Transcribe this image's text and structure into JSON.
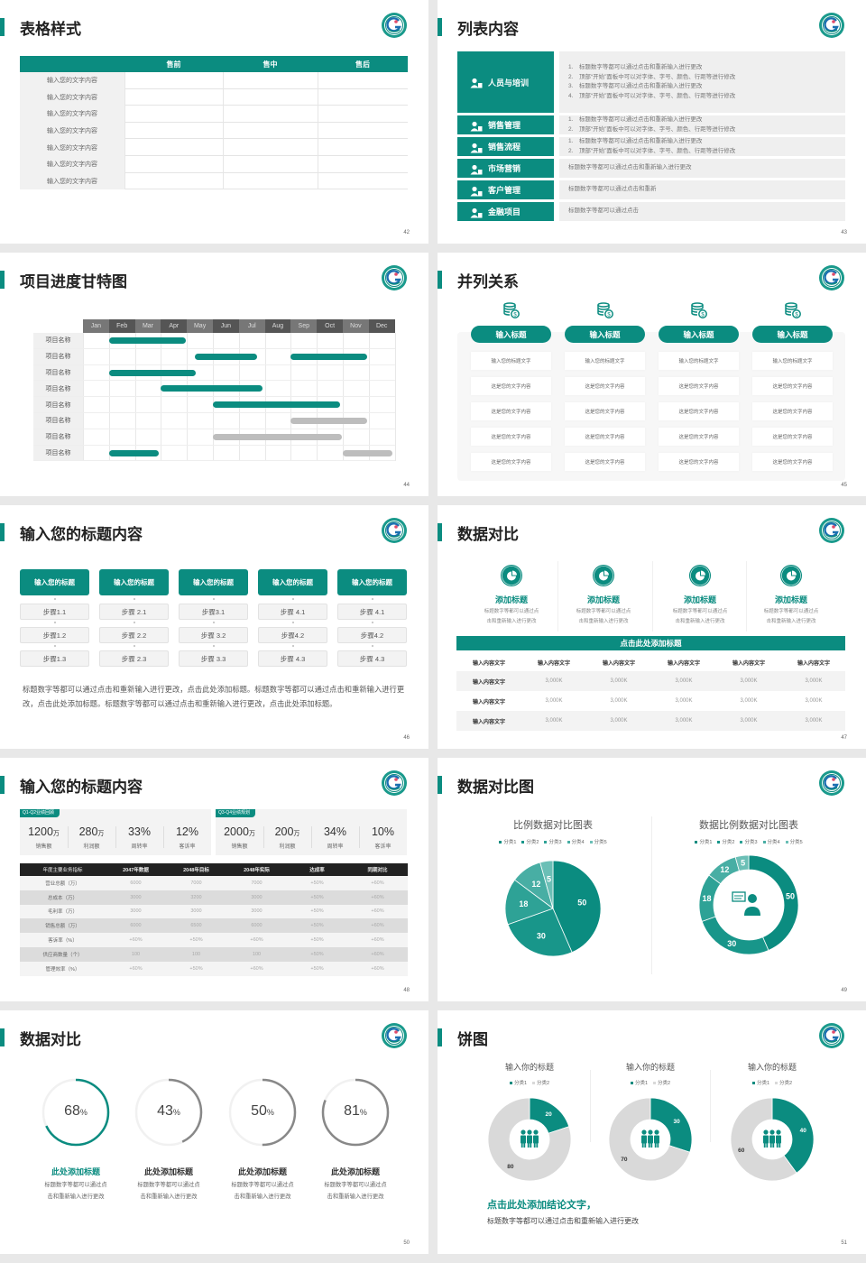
{
  "accent": "#0b8c80",
  "s42": {
    "title": "表格样式",
    "page": "42",
    "headers": [
      "",
      "售前",
      "售中",
      "售后"
    ],
    "rows": [
      "输入您的文字内容",
      "输入您的文字内容",
      "输入您的文字内容",
      "输入您的文字内容",
      "输入您的文字内容",
      "输入您的文字内容",
      "输入您的文字内容"
    ]
  },
  "s43": {
    "title": "列表内容",
    "page": "43",
    "items": [
      {
        "label": "人员与培训",
        "icon": "training-icon",
        "lines": [
          "1.　标题数字等都可以通过点击和重新输入进行更改",
          "2.　顶部“开始”面板中可以对字体、字号、颜色、行距等进行修改",
          "3.　标题数字等都可以通过点击和重新输入进行更改",
          "4.　顶部“开始”面板中可以对字体、字号、颜色、行距等进行修改"
        ]
      },
      {
        "label": "销售管理",
        "icon": "user-gear-icon",
        "lines": [
          "1.　标题数字等都可以通过点击和重新输入进行更改",
          "2.　顶部“开始”面板中可以对字体、字号、颜色、行距等进行修改"
        ]
      },
      {
        "label": "销售流程",
        "icon": "cycle-icon",
        "lines": [
          "1.　标题数字等都可以通过点击和重新输入进行更改",
          "2.　顶部“开始”面板中可以对字体、字号、颜色、行距等进行修改"
        ]
      },
      {
        "label": "市场营销",
        "icon": "bar-chart-icon",
        "lines": [
          "标题数字等都可以通过点击和重新输入进行更改"
        ]
      },
      {
        "label": "客户管理",
        "icon": "users-icon",
        "lines": [
          "标题数字等都可以通过点击和重新"
        ]
      },
      {
        "label": "金融项目",
        "icon": "money-hand-icon",
        "lines": [
          "标题数字等都可以通过点击"
        ]
      }
    ]
  },
  "s44": {
    "title": "项目进度甘特图",
    "page": "44",
    "months": [
      "Jan",
      "Feb",
      "Mar",
      "Apr",
      "May",
      "Jun",
      "Jul",
      "Aug",
      "Sep",
      "Oct",
      "Nov",
      "Dec"
    ],
    "rows": [
      {
        "label": "项目名称",
        "bars": [
          {
            "start": 1,
            "end": 3.95,
            "status": "active"
          }
        ]
      },
      {
        "label": "项目名称",
        "bars": [
          {
            "start": 4.3,
            "end": 6.7,
            "status": "active"
          },
          {
            "start": 8,
            "end": 10.95,
            "status": "active"
          }
        ]
      },
      {
        "label": "项目名称",
        "bars": [
          {
            "start": 1,
            "end": 4.35,
            "status": "active"
          }
        ]
      },
      {
        "label": "项目名称",
        "bars": [
          {
            "start": 3,
            "end": 6.9,
            "status": "active"
          }
        ]
      },
      {
        "label": "项目名称",
        "bars": [
          {
            "start": 5,
            "end": 9.9,
            "status": "active"
          }
        ]
      },
      {
        "label": "项目名称",
        "bars": [
          {
            "start": 8,
            "end": 10.95,
            "status": "planned"
          }
        ]
      },
      {
        "label": "项目名称",
        "bars": [
          {
            "start": 5,
            "end": 9.95,
            "status": "planned"
          }
        ]
      },
      {
        "label": "项目名称",
        "bars": [
          {
            "start": 1,
            "end": 2.9,
            "status": "active"
          },
          {
            "start": 10,
            "end": 11.9,
            "status": "planned"
          }
        ]
      }
    ],
    "colors": {
      "active": "#0b8c80",
      "planned": "#bdbdbd"
    }
  },
  "s45": {
    "title": "并列关系",
    "page": "45",
    "columns": [
      {
        "header": "输入标题",
        "cells": [
          "输入您的标题文字",
          "这是您的文字内容",
          "这是您的文字内容",
          "这是您的文字内容",
          "这是您的文字内容"
        ]
      },
      {
        "header": "输入标题",
        "cells": [
          "输入您的标题文字",
          "这是您的文字内容",
          "这是您的文字内容",
          "这是您的文字内容",
          "这是您的文字内容"
        ]
      },
      {
        "header": "输入标题",
        "cells": [
          "输入您的标题文字",
          "这是您的文字内容",
          "这是您的文字内容",
          "这是您的文字内容",
          "这是您的文字内容"
        ]
      },
      {
        "header": "输入标题",
        "cells": [
          "输入您的标题文字",
          "这是您的文字内容",
          "这是您的文字内容",
          "这是您的文字内容",
          "这是您的文字内容"
        ]
      }
    ]
  },
  "s46": {
    "title": "输入您的标题内容",
    "page": "46",
    "columns": [
      {
        "header": "输入您的标题",
        "steps": [
          "步骤1.1",
          "步骤1.2",
          "步骤1.3"
        ]
      },
      {
        "header": "输入您的标题",
        "steps": [
          "步骤 2.1",
          "步骤 2.2",
          "步骤 2.3"
        ]
      },
      {
        "header": "输入您的标题",
        "steps": [
          "步骤3.1",
          "步骤 3.2",
          "步骤 3.3"
        ]
      },
      {
        "header": "输入您的标题",
        "steps": [
          "步骤 4.1",
          "步骤4.2",
          "步骤 4.3"
        ]
      },
      {
        "header": "输入您的标题",
        "steps": [
          "步骤 4.1",
          "步骤4.2",
          "步骤 4.3"
        ]
      }
    ],
    "paragraph": "标题数字等都可以通过点击和重新输入进行更改，点击此处添加标题。标题数字等都可以通过点击和重新输入进行更改，点击此处添加标题。标题数字等都可以通过点击和重新输入进行更改，点击此处添加标题。"
  },
  "s47": {
    "title": "数据对比",
    "page": "47",
    "features": [
      {
        "title": "添加标题",
        "desc": [
          "标题数字等都可以通过点",
          "击和重新输入进行更改"
        ]
      },
      {
        "title": "添加标题",
        "desc": [
          "标题数字等都可以通过点",
          "击和重新输入进行更改"
        ]
      },
      {
        "title": "添加标题",
        "desc": [
          "标题数字等都可以通过点",
          "击和重新输入进行更改"
        ]
      },
      {
        "title": "添加标题",
        "desc": [
          "标题数字等都可以通过点",
          "击和重新输入进行更改"
        ]
      }
    ],
    "banner": "点击此处添加标题",
    "headers": [
      "输入内容文字",
      "输入内容文字",
      "输入内容文字",
      "输入内容文字",
      "输入内容文字",
      "输入内容文字"
    ],
    "rows": [
      [
        "输入内容文字",
        "3,000K",
        "3,000K",
        "3,000K",
        "3,000K",
        "3,000K"
      ],
      [
        "输入内容文字",
        "3,000K",
        "3,000K",
        "3,000K",
        "3,000K",
        "3,000K"
      ],
      [
        "输入内容文字",
        "3,000K",
        "3,000K",
        "3,000K",
        "3,000K",
        "3,000K"
      ]
    ]
  },
  "s48": {
    "title": "输入您的标题内容",
    "page": "48",
    "panels": [
      {
        "tag": "Q1-Q2业绩回顾",
        "stats": [
          {
            "value": "1200",
            "unit": "万",
            "label": "销售额"
          },
          {
            "value": "280",
            "unit": "万",
            "label": "利润额"
          },
          {
            "value": "33%",
            "unit": "",
            "label": "周转率"
          },
          {
            "value": "12%",
            "unit": "",
            "label": "客诉率"
          }
        ]
      },
      {
        "tag": "Q3-Q4业绩规划",
        "stats": [
          {
            "value": "2000",
            "unit": "万",
            "label": "销售额"
          },
          {
            "value": "200",
            "unit": "万",
            "label": "利润额"
          },
          {
            "value": "34%",
            "unit": "",
            "label": "周转率"
          },
          {
            "value": "10%",
            "unit": "",
            "label": "客诉率"
          }
        ]
      }
    ],
    "headers": [
      "年度主要业务指标",
      "2047年数据",
      "2048年目标",
      "2048年实际",
      "达成率",
      "同期对比"
    ],
    "rows": [
      [
        "营业总额（万）",
        "6000",
        "7000",
        "7000",
        "+50%",
        "+60%"
      ],
      [
        "总成本（万）",
        "3000",
        "3200",
        "3000",
        "+50%",
        "+60%"
      ],
      [
        "毛利率（万）",
        "3000",
        "3000",
        "3000",
        "+50%",
        "+60%"
      ],
      [
        "销售总额（万）",
        "6000",
        "6500",
        "6000",
        "+50%",
        "+60%"
      ],
      [
        "客诉率（%）",
        "+60%",
        "+50%",
        "+60%",
        "+50%",
        "+60%"
      ],
      [
        "供应商数量（个）",
        "100",
        "100",
        "100",
        "+50%",
        "+60%"
      ],
      [
        "管理效率（%）",
        "+60%",
        "+50%",
        "+60%",
        "+50%",
        "+60%"
      ]
    ]
  },
  "s49": {
    "title": "数据对比图",
    "page": "49",
    "chart_data": [
      {
        "type": "pie",
        "title": "比例数据对比图表",
        "categories": [
          "分类1",
          "分类2",
          "分类3",
          "分类4",
          "分类5"
        ],
        "values": [
          50,
          30,
          18,
          12,
          5
        ],
        "legend": "top"
      },
      {
        "type": "pie",
        "variant": "donut",
        "title": "数据比例数据对比图表",
        "categories": [
          "分类1",
          "分类2",
          "分类3",
          "分类4",
          "分类5"
        ],
        "values": [
          50,
          30,
          18,
          12,
          5
        ],
        "legend": "top",
        "center_icon": "customer-service-icon"
      }
    ],
    "colors": [
      "#0b8c80",
      "#18968a",
      "#2ea296",
      "#48aea4",
      "#6bbfb6"
    ]
  },
  "s50": {
    "title": "数据对比",
    "page": "50",
    "rings": [
      {
        "value": 68,
        "number": "68",
        "unit": "%",
        "title": "此处添加标题",
        "desc": [
          "标题数字等都可以通过点",
          "击和重新输入进行更改"
        ],
        "color": "#0b8c80"
      },
      {
        "value": 43,
        "number": "43",
        "unit": "%",
        "title": "此处添加标题",
        "desc": [
          "标题数字等都可以通过点",
          "击和重新输入进行更改"
        ],
        "color": "#888888"
      },
      {
        "value": 50,
        "number": "50",
        "unit": "%",
        "title": "此处添加标题",
        "desc": [
          "标题数字等都可以通过点",
          "击和重新输入进行更改"
        ],
        "color": "#888888"
      },
      {
        "value": 81,
        "number": "81",
        "unit": "%",
        "title": "此处添加标题",
        "desc": [
          "标题数字等都可以通过点",
          "击和重新输入进行更改"
        ],
        "color": "#888888"
      }
    ]
  },
  "s51": {
    "title": "饼图",
    "page": "51",
    "chart_data": [
      {
        "type": "pie",
        "variant": "donut",
        "title": "输入你的标题",
        "categories": [
          "分类1",
          "分类2"
        ],
        "values": [
          20,
          80
        ],
        "legend": "top"
      },
      {
        "type": "pie",
        "variant": "donut",
        "title": "输入你的标题",
        "categories": [
          "分类1",
          "分类2"
        ],
        "values": [
          30,
          70
        ],
        "legend": "top"
      },
      {
        "type": "pie",
        "variant": "donut",
        "title": "输入你的标题",
        "categories": [
          "分类1",
          "分类2"
        ],
        "values": [
          40,
          60
        ],
        "legend": "top"
      }
    ],
    "colors": [
      "#0b8c80",
      "#d9d9d9"
    ],
    "conclusion": "点击此处添加结论文字，",
    "text": "标题数字等都可以通过点击和重新输入进行更改"
  }
}
